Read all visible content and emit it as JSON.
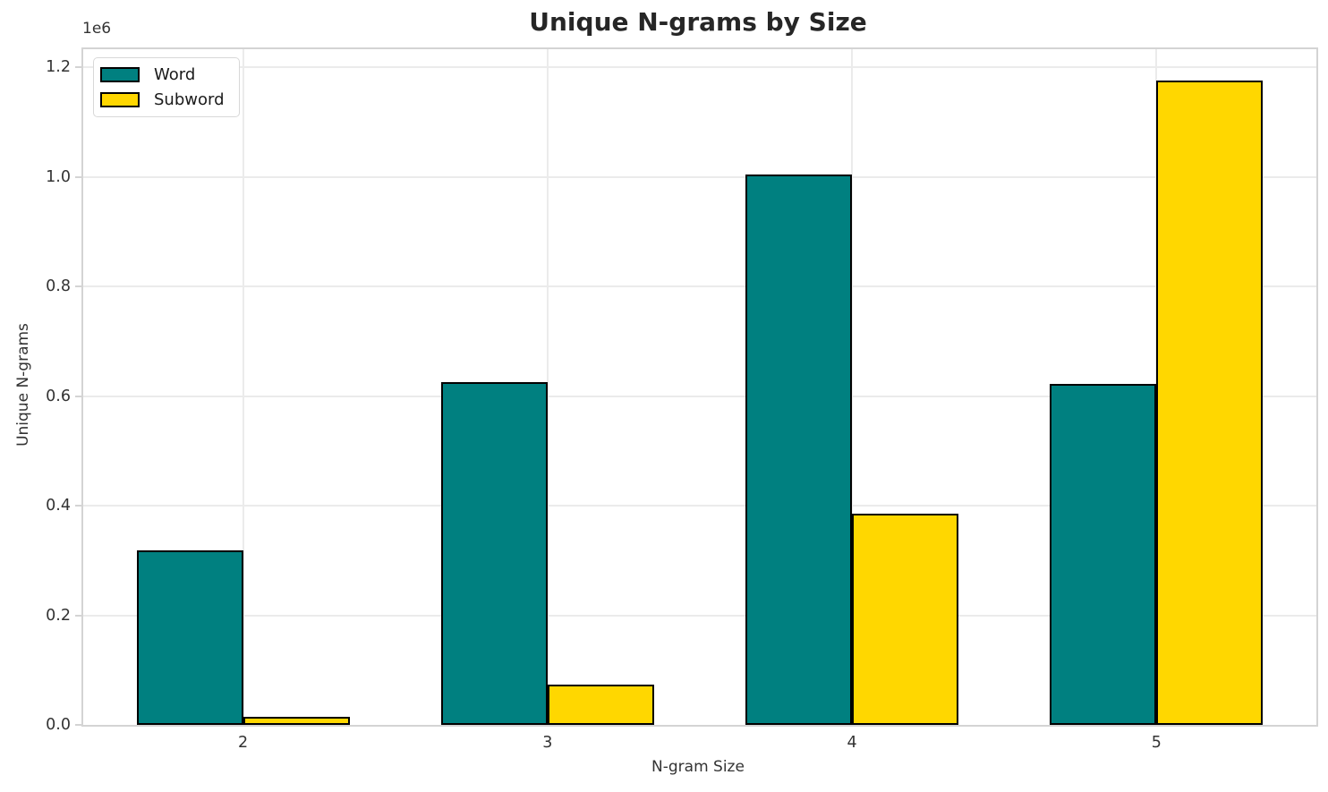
{
  "figure": {
    "title": "Unique N-grams by Size",
    "offset_text": "1e6",
    "xlabel": "N-gram Size",
    "ylabel": "Unique N-grams"
  },
  "chart_data": {
    "type": "bar",
    "title": "Unique N-grams by Size",
    "xlabel": "N-gram Size",
    "ylabel": "Unique N-grams",
    "categories": [
      "2",
      "3",
      "4",
      "5"
    ],
    "series": [
      {
        "name": "Word",
        "color": "#008080",
        "values": [
          319000,
          626000,
          1005000,
          622000
        ]
      },
      {
        "name": "Subword",
        "color": "#ffd700",
        "values": [
          14000,
          74000,
          385000,
          1176000
        ]
      }
    ],
    "y_ticks": [
      0,
      200000,
      400000,
      600000,
      800000,
      1000000,
      1200000
    ],
    "y_tick_labels": [
      "0.0",
      "0.2",
      "0.4",
      "0.6",
      "0.8",
      "1.0",
      "1.2"
    ],
    "ylim": [
      0,
      1233000
    ],
    "xlim": [
      -0.525,
      3.525
    ],
    "bar_width": 0.35,
    "scale_note": "1e6",
    "grid": true,
    "legend_position": "upper left",
    "bar_edge_color": "#000000",
    "grid_color": "#ebebeb",
    "spine_color": "#d4d4d4"
  }
}
